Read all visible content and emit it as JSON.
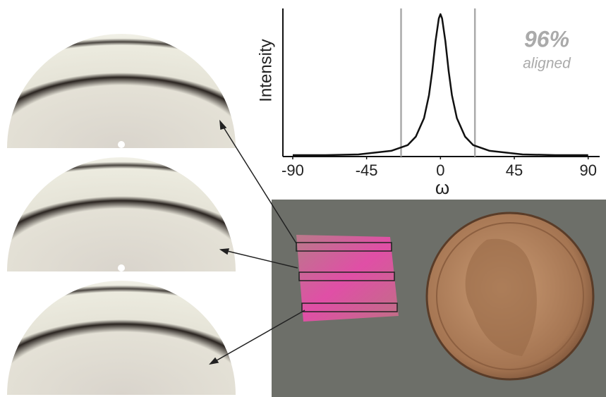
{
  "chart_data": {
    "type": "line",
    "y_label": "Intensity",
    "x_label": "ω",
    "annotation": "96%",
    "annotation_sub": "aligned",
    "x": [
      -90,
      -70,
      -50,
      -30,
      -20,
      -15,
      -10,
      -7,
      -5,
      -3,
      -1,
      0,
      1,
      3,
      5,
      7,
      10,
      15,
      20,
      30,
      50,
      70,
      90
    ],
    "series": [
      {
        "name": "Intensity",
        "color": "#111111",
        "values": [
          0.01,
          0.01,
          0.015,
          0.04,
          0.08,
          0.14,
          0.27,
          0.43,
          0.6,
          0.81,
          0.97,
          1.0,
          0.97,
          0.81,
          0.6,
          0.43,
          0.27,
          0.14,
          0.08,
          0.04,
          0.015,
          0.01,
          0.01
        ]
      }
    ],
    "vlines": [
      -24,
      21
    ],
    "vline_color": "#aaaaaa",
    "xlim": [
      -96,
      97
    ],
    "ylim": [
      0,
      1.04
    ],
    "xticks": [
      -90,
      -45,
      0,
      45,
      90
    ]
  }
}
